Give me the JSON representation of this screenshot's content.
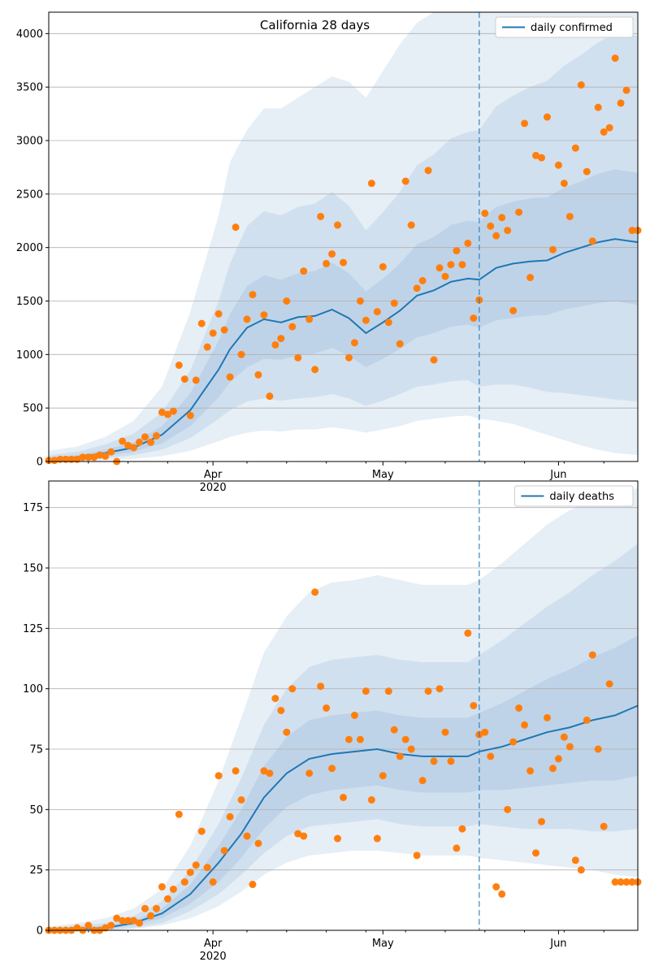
{
  "chart_data": [
    {
      "type": "line",
      "title": "California 28 days",
      "xlabel": "",
      "ylabel": "",
      "x_start": "2020-03-03",
      "x_end": "2020-06-15",
      "forecast_start": "2020-05-18",
      "xticks": [
        {
          "date": "2020-04-01",
          "label": "Apr",
          "sublabel": "2020"
        },
        {
          "date": "2020-05-01",
          "label": "May",
          "sublabel": ""
        },
        {
          "date": "2020-06-01",
          "label": "Jun",
          "sublabel": ""
        }
      ],
      "yticks": [
        0,
        500,
        1000,
        1500,
        2000,
        2500,
        3000,
        3500,
        4000
      ],
      "ylim": [
        0,
        4200
      ],
      "grid": "y",
      "legend": {
        "position": "top-right",
        "label": "daily confirmed"
      },
      "model": {
        "name": "daily confirmed",
        "x": [
          "2020-03-03",
          "2020-03-08",
          "2020-03-13",
          "2020-03-18",
          "2020-03-23",
          "2020-03-28",
          "2020-04-02",
          "2020-04-04",
          "2020-04-07",
          "2020-04-10",
          "2020-04-13",
          "2020-04-16",
          "2020-04-19",
          "2020-04-22",
          "2020-04-25",
          "2020-04-28",
          "2020-05-01",
          "2020-05-04",
          "2020-05-07",
          "2020-05-10",
          "2020-05-13",
          "2020-05-16",
          "2020-05-18",
          "2020-05-21",
          "2020-05-24",
          "2020-05-27",
          "2020-05-30",
          "2020-06-02",
          "2020-06-05",
          "2020-06-08",
          "2020-06-11",
          "2020-06-15"
        ],
        "y": [
          20,
          40,
          80,
          130,
          250,
          480,
          860,
          1050,
          1250,
          1330,
          1300,
          1350,
          1360,
          1420,
          1340,
          1200,
          1300,
          1410,
          1550,
          1600,
          1680,
          1710,
          1700,
          1810,
          1850,
          1870,
          1880,
          1950,
          2000,
          2050,
          2080,
          2050
        ],
        "band1_lo": [
          0,
          20,
          50,
          90,
          170,
          330,
          600,
          740,
          880,
          960,
          950,
          990,
          1010,
          1060,
          990,
          880,
          960,
          1050,
          1160,
          1200,
          1260,
          1280,
          1250,
          1320,
          1340,
          1360,
          1370,
          1420,
          1450,
          1480,
          1500,
          1460
        ],
        "band1_hi": [
          40,
          60,
          110,
          180,
          330,
          640,
          1130,
          1380,
          1640,
          1740,
          1700,
          1760,
          1780,
          1860,
          1760,
          1590,
          1710,
          1850,
          2030,
          2100,
          2210,
          2250,
          2240,
          2380,
          2430,
          2460,
          2470,
          2560,
          2620,
          2690,
          2730,
          2700
        ],
        "band2_lo": [
          0,
          10,
          30,
          60,
          110,
          220,
          400,
          480,
          560,
          590,
          570,
          590,
          600,
          630,
          590,
          520,
          570,
          630,
          700,
          720,
          750,
          760,
          700,
          720,
          720,
          690,
          650,
          640,
          620,
          600,
          580,
          560
        ],
        "band2_hi": [
          60,
          90,
          160,
          260,
          460,
          850,
          1500,
          1850,
          2200,
          2340,
          2300,
          2380,
          2410,
          2520,
          2390,
          2160,
          2330,
          2520,
          2770,
          2870,
          3020,
          3080,
          3100,
          3320,
          3420,
          3500,
          3560,
          3700,
          3800,
          3920,
          4000,
          3980
        ],
        "band3_lo": [
          0,
          0,
          10,
          25,
          50,
          100,
          190,
          230,
          270,
          290,
          280,
          300,
          300,
          320,
          300,
          270,
          300,
          330,
          380,
          400,
          420,
          430,
          400,
          380,
          350,
          300,
          250,
          200,
          150,
          110,
          80,
          60
        ],
        "band3_hi": [
          100,
          140,
          230,
          380,
          700,
          1400,
          2300,
          2800,
          3100,
          3300,
          3300,
          3400,
          3500,
          3600,
          3550,
          3400,
          3650,
          3900,
          4100,
          4200,
          4200,
          4200,
          4200,
          4200,
          4200,
          4200,
          4200,
          4200,
          4200,
          4200,
          4200,
          4200
        ]
      },
      "observed": {
        "x": [
          "2020-03-03",
          "2020-03-04",
          "2020-03-05",
          "2020-03-06",
          "2020-03-07",
          "2020-03-08",
          "2020-03-09",
          "2020-03-10",
          "2020-03-11",
          "2020-03-12",
          "2020-03-13",
          "2020-03-14",
          "2020-03-15",
          "2020-03-16",
          "2020-03-17",
          "2020-03-18",
          "2020-03-19",
          "2020-03-20",
          "2020-03-21",
          "2020-03-22",
          "2020-03-23",
          "2020-03-24",
          "2020-03-25",
          "2020-03-26",
          "2020-03-27",
          "2020-03-28",
          "2020-03-29",
          "2020-03-30",
          "2020-03-31",
          "2020-04-01",
          "2020-04-02",
          "2020-04-03",
          "2020-04-04",
          "2020-04-05",
          "2020-04-06",
          "2020-04-07",
          "2020-04-08",
          "2020-04-09",
          "2020-04-10",
          "2020-04-11",
          "2020-04-12",
          "2020-04-13",
          "2020-04-14",
          "2020-04-15",
          "2020-04-16",
          "2020-04-17",
          "2020-04-18",
          "2020-04-19",
          "2020-04-20",
          "2020-04-21",
          "2020-04-22",
          "2020-04-23",
          "2020-04-24",
          "2020-04-25",
          "2020-04-26",
          "2020-04-27",
          "2020-04-28",
          "2020-04-29",
          "2020-04-30",
          "2020-05-01",
          "2020-05-02",
          "2020-05-03",
          "2020-05-04",
          "2020-05-05",
          "2020-05-06",
          "2020-05-07",
          "2020-05-08",
          "2020-05-09",
          "2020-05-10",
          "2020-05-11",
          "2020-05-12",
          "2020-05-13",
          "2020-05-14",
          "2020-05-15",
          "2020-05-16",
          "2020-05-17",
          "2020-05-18",
          "2020-05-19",
          "2020-05-20",
          "2020-05-21",
          "2020-05-22",
          "2020-05-23",
          "2020-05-24",
          "2020-05-25",
          "2020-05-26",
          "2020-05-27",
          "2020-05-28",
          "2020-05-29",
          "2020-05-30",
          "2020-05-31",
          "2020-06-01",
          "2020-06-02",
          "2020-06-03",
          "2020-06-04",
          "2020-06-05",
          "2020-06-06",
          "2020-06-07",
          "2020-06-08",
          "2020-06-09",
          "2020-06-10",
          "2020-06-11",
          "2020-06-12",
          "2020-06-13",
          "2020-06-14",
          "2020-06-15"
        ],
        "y": [
          10,
          10,
          20,
          20,
          20,
          20,
          40,
          40,
          40,
          60,
          50,
          90,
          0,
          190,
          150,
          130,
          180,
          230,
          180,
          240,
          460,
          440,
          470,
          900,
          770,
          430,
          760,
          1290,
          1070,
          1200,
          1380,
          1230,
          790,
          2190,
          1000,
          1330,
          1560,
          810,
          1370,
          610,
          1090,
          1150,
          1500,
          1260,
          970,
          1780,
          1330,
          860,
          2290,
          1850,
          1940,
          2210,
          1860,
          970,
          1110,
          1500,
          1320,
          2600,
          1400,
          1820,
          1300,
          1480,
          1100,
          2620,
          2210,
          1620,
          1690,
          2720,
          950,
          1810,
          1730,
          1840,
          1970,
          1840,
          2040,
          1340,
          1510,
          2320,
          2200,
          2110,
          2280,
          2160,
          1410,
          2330,
          3160,
          1720,
          2860,
          2840,
          3220,
          1980,
          2770,
          2600,
          2290,
          2930,
          3520,
          2710,
          2060,
          3310,
          3080,
          3120,
          3770,
          3350,
          3470,
          2160,
          2160
        ]
      }
    },
    {
      "type": "line",
      "title": "",
      "xlabel": "",
      "ylabel": "",
      "x_start": "2020-03-03",
      "x_end": "2020-06-15",
      "forecast_start": "2020-05-18",
      "xticks": [
        {
          "date": "2020-04-01",
          "label": "Apr",
          "sublabel": "2020"
        },
        {
          "date": "2020-05-01",
          "label": "May",
          "sublabel": ""
        },
        {
          "date": "2020-06-01",
          "label": "Jun",
          "sublabel": ""
        }
      ],
      "yticks": [
        0,
        25,
        50,
        75,
        100,
        125,
        150,
        175
      ],
      "ylim": [
        0,
        186
      ],
      "grid": "y",
      "legend": {
        "position": "top-right",
        "label": "daily deaths"
      },
      "model": {
        "name": "daily deaths",
        "x": [
          "2020-03-03",
          "2020-03-08",
          "2020-03-13",
          "2020-03-18",
          "2020-03-23",
          "2020-03-28",
          "2020-04-02",
          "2020-04-06",
          "2020-04-10",
          "2020-04-14",
          "2020-04-18",
          "2020-04-22",
          "2020-04-26",
          "2020-04-30",
          "2020-05-04",
          "2020-05-08",
          "2020-05-12",
          "2020-05-16",
          "2020-05-18",
          "2020-05-22",
          "2020-05-26",
          "2020-05-30",
          "2020-06-03",
          "2020-06-07",
          "2020-06-11",
          "2020-06-15"
        ],
        "y": [
          0,
          0.5,
          1,
          3,
          7,
          15,
          28,
          40,
          55,
          65,
          71,
          73,
          74,
          75,
          73,
          72,
          72,
          72,
          74,
          76,
          79,
          82,
          84,
          87,
          89,
          93
        ],
        "band1_lo": [
          0,
          0,
          0.5,
          2,
          5,
          11,
          20,
          30,
          42,
          51,
          56,
          58,
          59,
          60,
          58,
          57,
          57,
          57,
          58,
          58,
          59,
          60,
          61,
          62,
          62,
          64
        ],
        "band1_hi": [
          0.5,
          1,
          2,
          4,
          9,
          19,
          35,
          50,
          68,
          80,
          87,
          89,
          90,
          91,
          89,
          88,
          88,
          88,
          90,
          94,
          99,
          104,
          108,
          113,
          117,
          122
        ],
        "band2_lo": [
          0,
          0,
          0,
          1,
          3,
          8,
          15,
          23,
          32,
          39,
          43,
          44,
          45,
          46,
          44,
          43,
          43,
          43,
          44,
          43,
          42,
          42,
          42,
          41,
          41,
          42
        ],
        "band2_hi": [
          1,
          2,
          3,
          6,
          12,
          25,
          44,
          63,
          85,
          100,
          109,
          112,
          113,
          114,
          112,
          111,
          111,
          111,
          114,
          120,
          127,
          134,
          140,
          147,
          153,
          160
        ],
        "band3_lo": [
          0,
          0,
          0,
          0.5,
          2,
          5,
          10,
          16,
          23,
          28,
          31,
          32,
          33,
          33,
          32,
          31,
          31,
          31,
          30,
          29,
          28,
          27,
          26,
          25,
          23,
          22
        ],
        "band3_hi": [
          1.5,
          3,
          5,
          9,
          17,
          35,
          62,
          88,
          115,
          130,
          140,
          144,
          145,
          147,
          145,
          143,
          143,
          143,
          145,
          152,
          160,
          168,
          174,
          178,
          181,
          183
        ]
      },
      "observed": {
        "x": [
          "2020-03-03",
          "2020-03-04",
          "2020-03-05",
          "2020-03-06",
          "2020-03-07",
          "2020-03-08",
          "2020-03-09",
          "2020-03-10",
          "2020-03-11",
          "2020-03-12",
          "2020-03-13",
          "2020-03-14",
          "2020-03-15",
          "2020-03-16",
          "2020-03-17",
          "2020-03-18",
          "2020-03-19",
          "2020-03-20",
          "2020-03-21",
          "2020-03-22",
          "2020-03-23",
          "2020-03-24",
          "2020-03-25",
          "2020-03-26",
          "2020-03-27",
          "2020-03-28",
          "2020-03-29",
          "2020-03-30",
          "2020-03-31",
          "2020-04-01",
          "2020-04-02",
          "2020-04-03",
          "2020-04-04",
          "2020-04-05",
          "2020-04-06",
          "2020-04-07",
          "2020-04-08",
          "2020-04-09",
          "2020-04-10",
          "2020-04-11",
          "2020-04-12",
          "2020-04-13",
          "2020-04-14",
          "2020-04-15",
          "2020-04-16",
          "2020-04-17",
          "2020-04-18",
          "2020-04-19",
          "2020-04-20",
          "2020-04-21",
          "2020-04-22",
          "2020-04-23",
          "2020-04-24",
          "2020-04-25",
          "2020-04-26",
          "2020-04-27",
          "2020-04-28",
          "2020-04-29",
          "2020-04-30",
          "2020-05-01",
          "2020-05-02",
          "2020-05-03",
          "2020-05-04",
          "2020-05-05",
          "2020-05-06",
          "2020-05-07",
          "2020-05-08",
          "2020-05-09",
          "2020-05-10",
          "2020-05-11",
          "2020-05-12",
          "2020-05-13",
          "2020-05-14",
          "2020-05-15",
          "2020-05-16",
          "2020-05-17",
          "2020-05-18",
          "2020-05-19",
          "2020-05-20",
          "2020-05-21",
          "2020-05-22",
          "2020-05-23",
          "2020-05-24",
          "2020-05-25",
          "2020-05-26",
          "2020-05-27",
          "2020-05-28",
          "2020-05-29",
          "2020-05-30",
          "2020-05-31",
          "2020-06-01",
          "2020-06-02",
          "2020-06-03",
          "2020-06-04",
          "2020-06-05",
          "2020-06-06",
          "2020-06-07",
          "2020-06-08",
          "2020-06-09",
          "2020-06-10",
          "2020-06-11",
          "2020-06-12",
          "2020-06-13",
          "2020-06-14",
          "2020-06-15"
        ],
        "y": [
          0,
          0,
          0,
          0,
          0,
          1,
          0,
          2,
          0,
          0,
          1,
          2,
          5,
          4,
          4,
          4,
          3,
          9,
          6,
          9,
          18,
          13,
          17,
          48,
          20,
          24,
          27,
          41,
          26,
          20,
          64,
          33,
          47,
          66,
          54,
          39,
          19,
          36,
          66,
          65,
          96,
          91,
          82,
          100,
          40,
          39,
          65,
          140,
          101,
          92,
          67,
          38,
          55,
          79,
          89,
          79,
          99,
          54,
          38,
          64,
          99,
          83,
          72,
          79,
          75,
          31,
          62,
          99,
          70,
          100,
          82,
          70,
          34,
          42,
          123,
          93,
          81,
          82,
          72,
          18,
          15,
          50,
          78,
          92,
          85,
          66,
          32,
          45,
          88,
          67,
          71,
          80,
          76,
          29,
          25,
          87,
          114,
          75,
          43,
          102,
          20,
          20,
          20,
          20,
          20
        ]
      }
    }
  ]
}
